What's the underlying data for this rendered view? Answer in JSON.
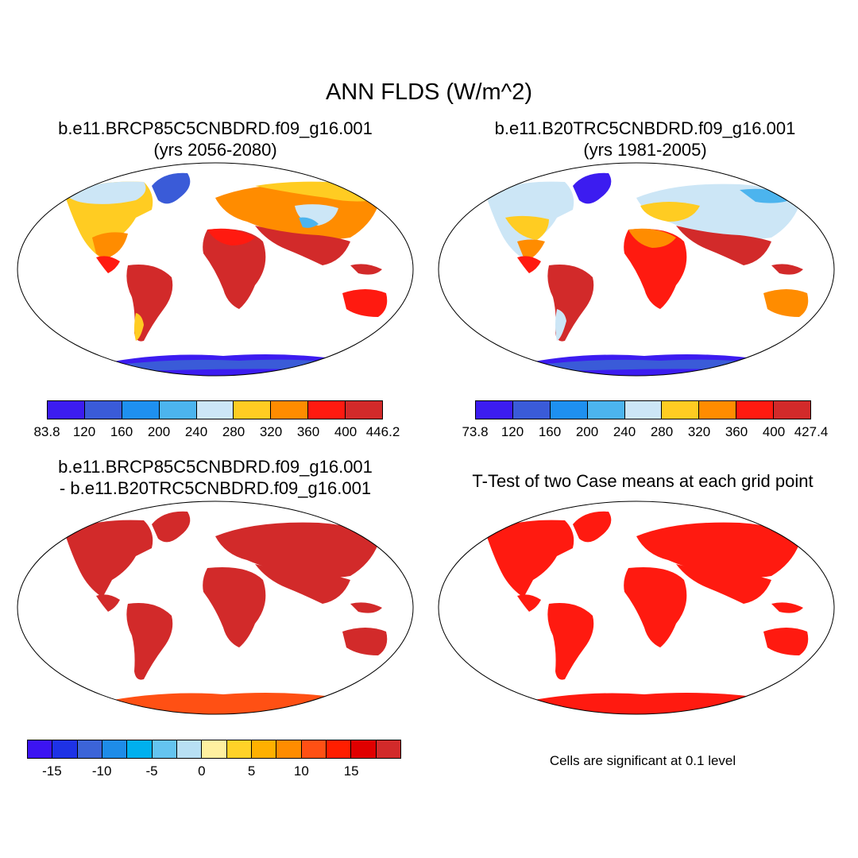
{
  "main_title": "ANN FLDS (W/m^2)",
  "panels": [
    {
      "line1": "b.e11.BRCP85C5CNBDRD.f09_g16.001",
      "line2": "(yrs 2056-2080)"
    },
    {
      "line1": "b.e11.B20TRC5CNBDRD.f09_g16.001",
      "line2": "(yrs 1981-2005)"
    },
    {
      "line1": "b.e11.BRCP85C5CNBDRD.f09_g16.001",
      "line2": "- b.e11.B20TRC5CNBDRD.f09_g16.001"
    },
    {
      "line1": "T-Test of two Case means at each grid point"
    }
  ],
  "colorbars": [
    {
      "colors": [
        "#3c1cf0",
        "#3a5bd8",
        "#1e90f0",
        "#4cb4ee",
        "#cce6f6",
        "#ffcc22",
        "#ff8c00",
        "#ff1a10",
        "#d22a2a"
      ],
      "labels": [
        "83.8",
        "120",
        "160",
        "200",
        "240",
        "280",
        "320",
        "360",
        "400",
        "446.2"
      ]
    },
    {
      "colors": [
        "#3c1cf0",
        "#3a5bd8",
        "#1e90f0",
        "#4cb4ee",
        "#cce6f6",
        "#ffcc22",
        "#ff8c00",
        "#ff1a10",
        "#d22a2a"
      ],
      "labels": [
        "73.8",
        "120",
        "160",
        "200",
        "240",
        "280",
        "320",
        "360",
        "400",
        "427.4"
      ]
    },
    {
      "colors": [
        "#3c14f2",
        "#1e32e6",
        "#3c64d8",
        "#1e8ce8",
        "#00b0ee",
        "#64c4f0",
        "#b8e0f4",
        "#fff0a0",
        "#ffd228",
        "#ffb000",
        "#ff8c00",
        "#ff5014",
        "#ff1e00",
        "#e00000",
        "#d22a2a"
      ],
      "labels": [
        "-15",
        "-10",
        "-5",
        "0",
        "5",
        "10",
        "15"
      ]
    }
  ],
  "significance_note": "Cells are significant at 0.1 level",
  "colors": {
    "ocean": "#ffffff",
    "diff_land": "#d22a2a",
    "ttest_land": "#ff1a10"
  }
}
